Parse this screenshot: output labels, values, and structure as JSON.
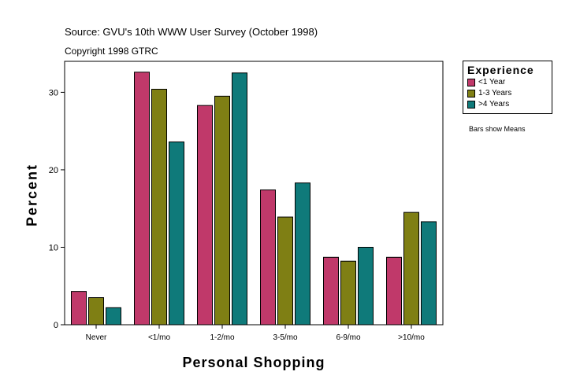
{
  "header": {
    "source": "Source: GVU's 10th WWW User Survey (October 1998)",
    "copyright": "Copyright 1998 GTRC"
  },
  "note": "Bars show Means",
  "legend": {
    "title": "Experience",
    "items": [
      {
        "label": "<1 Year",
        "color": "#c0396a"
      },
      {
        "label": "1-3 Years",
        "color": "#7f7f14"
      },
      {
        "label": ">4 Years",
        "color": "#0f7a7a"
      }
    ]
  },
  "chart_data": {
    "type": "bar",
    "xlabel": "Personal Shopping",
    "ylabel": "Percent",
    "categories": [
      "Never",
      "<1/mo",
      "1-2/mo",
      "3-5/mo",
      "6-9/mo",
      ">10/mo"
    ],
    "series": [
      {
        "name": "<1 Year",
        "color": "#c0396a",
        "values": [
          4.3,
          32.6,
          28.3,
          17.4,
          8.7,
          8.7
        ]
      },
      {
        "name": "1-3 Years",
        "color": "#7f7f14",
        "values": [
          3.5,
          30.4,
          29.5,
          13.9,
          8.2,
          14.5
        ]
      },
      {
        "name": ">4 Years",
        "color": "#0f7a7a",
        "values": [
          2.2,
          23.6,
          32.5,
          18.3,
          10.0,
          13.3
        ]
      }
    ],
    "yticks": [
      0,
      10,
      20,
      30
    ],
    "ylim": [
      0,
      34
    ],
    "grid": false,
    "legend_position": "right"
  }
}
